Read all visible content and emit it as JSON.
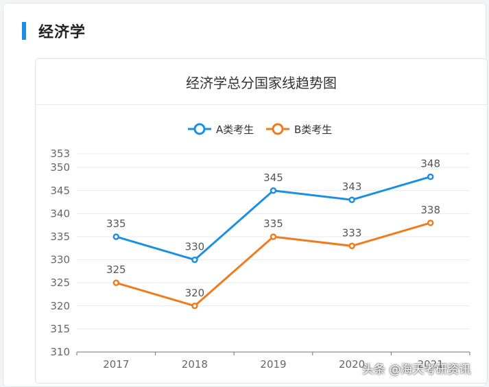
{
  "section": {
    "title": "经济学"
  },
  "colors": {
    "accent": "#1a8fe3",
    "seriesA": "#1a8fe3",
    "seriesB": "#f07b1d"
  },
  "watermark": "头条 @海天考研资讯",
  "chart_data": {
    "type": "line",
    "title": "经济学总分国家线趋势图",
    "xlabel": "",
    "ylabel": "",
    "categories": [
      "2017",
      "2018",
      "2019",
      "2020",
      "2021"
    ],
    "ylim": [
      310,
      353
    ],
    "yticks": [
      310,
      315,
      320,
      325,
      330,
      335,
      340,
      345,
      350,
      353
    ],
    "grid": true,
    "legend": "top-center",
    "series": [
      {
        "name": "A类考生",
        "values": [
          335,
          330,
          345,
          343,
          348
        ],
        "color": "#1a8fe3"
      },
      {
        "name": "B类考生",
        "values": [
          325,
          320,
          335,
          333,
          338
        ],
        "color": "#f07b1d"
      }
    ]
  }
}
